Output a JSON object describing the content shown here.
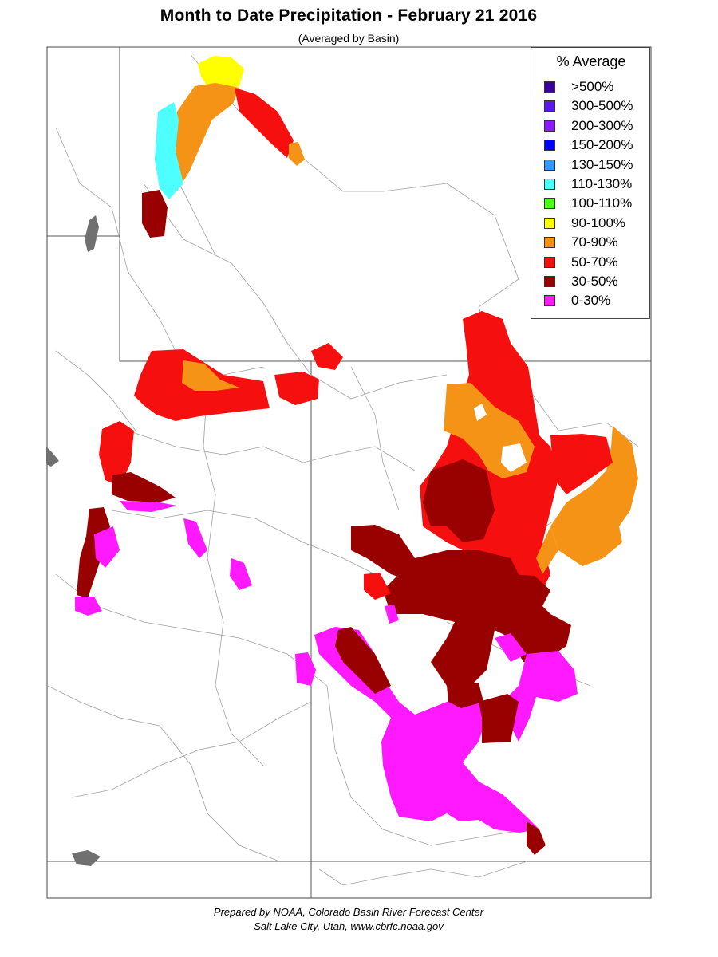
{
  "title": "Month to Date Precipitation - February 21 2016",
  "subtitle": "(Averaged by Basin)",
  "legend": {
    "title": "% Average",
    "items": [
      {
        "label": ">500%",
        "color": "#3a0099"
      },
      {
        "label": "300-500%",
        "color": "#5a1ae6"
      },
      {
        "label": "200-300%",
        "color": "#8c1aff"
      },
      {
        "label": "150-200%",
        "color": "#0000ff"
      },
      {
        "label": "130-150%",
        "color": "#3399ff"
      },
      {
        "label": "110-130%",
        "color": "#4dffff"
      },
      {
        "label": "100-110%",
        "color": "#4dff1a"
      },
      {
        "label": "90-100%",
        "color": "#ffff00"
      },
      {
        "label": "70-90%",
        "color": "#f59316"
      },
      {
        "label": "50-70%",
        "color": "#f50f0f"
      },
      {
        "label": "30-50%",
        "color": "#990000"
      },
      {
        "label": "0-30%",
        "color": "#ff19ff"
      }
    ]
  },
  "footer": {
    "line1": "Prepared by NOAA, Colorado Basin River Forecast Center",
    "line2": "Salt Lake City, Utah, www.cbrfc.noaa.gov"
  },
  "colors": {
    "rivers": "#a0a0a0",
    "borders": "#555555",
    "lakes": "#707070"
  }
}
